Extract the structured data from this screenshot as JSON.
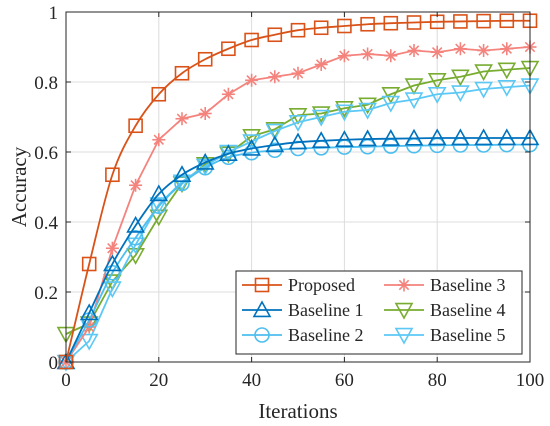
{
  "chart_data": {
    "type": "line",
    "xlabel": "Iterations",
    "ylabel": "Accuracy",
    "xlim": [
      0,
      100
    ],
    "ylim": [
      0,
      1
    ],
    "x_ticks": [
      0,
      20,
      40,
      60,
      80,
      100
    ],
    "y_ticks": [
      0,
      0.2,
      0.4,
      0.6,
      0.8,
      1
    ],
    "x_tick_labels": [
      "0",
      "20",
      "40",
      "60",
      "80",
      "100"
    ],
    "y_tick_labels": [
      "0",
      "0.2",
      "0.4",
      "0.6",
      "0.8",
      "1"
    ],
    "grid": true,
    "legend_position": "bottom-right",
    "legend_columns": 2,
    "x": [
      0,
      5,
      10,
      15,
      20,
      25,
      30,
      35,
      40,
      45,
      50,
      55,
      60,
      65,
      70,
      75,
      80,
      85,
      90,
      95,
      100
    ],
    "series": [
      {
        "name": "Proposed",
        "color": "#d95319",
        "marker": "square",
        "smooth": true,
        "values": [
          0.0,
          0.28,
          0.535,
          0.675,
          0.765,
          0.825,
          0.865,
          0.895,
          0.92,
          0.935,
          0.948,
          0.955,
          0.96,
          0.965,
          0.968,
          0.97,
          0.972,
          0.973,
          0.974,
          0.975,
          0.975
        ]
      },
      {
        "name": "Baseline 1",
        "color": "#0072bd",
        "marker": "triangle-up",
        "smooth": true,
        "values": [
          0.0,
          0.14,
          0.28,
          0.39,
          0.48,
          0.535,
          0.57,
          0.595,
          0.61,
          0.62,
          0.628,
          0.632,
          0.635,
          0.637,
          0.638,
          0.639,
          0.64,
          0.64,
          0.64,
          0.64,
          0.64
        ]
      },
      {
        "name": "Baseline 2",
        "color": "#4dbeee",
        "marker": "circle",
        "smooth": true,
        "values": [
          0.0,
          0.12,
          0.255,
          0.355,
          0.445,
          0.51,
          0.555,
          0.585,
          0.598,
          0.605,
          0.61,
          0.612,
          0.614,
          0.615,
          0.617,
          0.618,
          0.619,
          0.62,
          0.62,
          0.621,
          0.621
        ]
      },
      {
        "name": "Baseline 3",
        "color": "#f4837d",
        "marker": "asterisk",
        "smooth": false,
        "values": [
          0.0,
          0.1,
          0.325,
          0.505,
          0.635,
          0.695,
          0.71,
          0.765,
          0.805,
          0.815,
          0.825,
          0.85,
          0.875,
          0.88,
          0.875,
          0.89,
          0.885,
          0.895,
          0.89,
          0.895,
          0.9
        ]
      },
      {
        "name": "Baseline 4",
        "color": "#77ac30",
        "marker": "triangle-down",
        "smooth": false,
        "values": [
          0.08,
          0.11,
          0.23,
          0.305,
          0.415,
          0.51,
          0.565,
          0.595,
          0.645,
          0.665,
          0.705,
          0.71,
          0.725,
          0.735,
          0.765,
          0.79,
          0.805,
          0.815,
          0.83,
          0.835,
          0.84
        ]
      },
      {
        "name": "Baseline 5",
        "color": "#5bc8f5",
        "marker": "triangle-down",
        "smooth": false,
        "values": [
          0.0,
          0.06,
          0.21,
          0.335,
          0.45,
          0.515,
          0.56,
          0.6,
          0.63,
          0.66,
          0.685,
          0.7,
          0.715,
          0.72,
          0.74,
          0.75,
          0.765,
          0.77,
          0.78,
          0.785,
          0.79
        ]
      }
    ]
  }
}
